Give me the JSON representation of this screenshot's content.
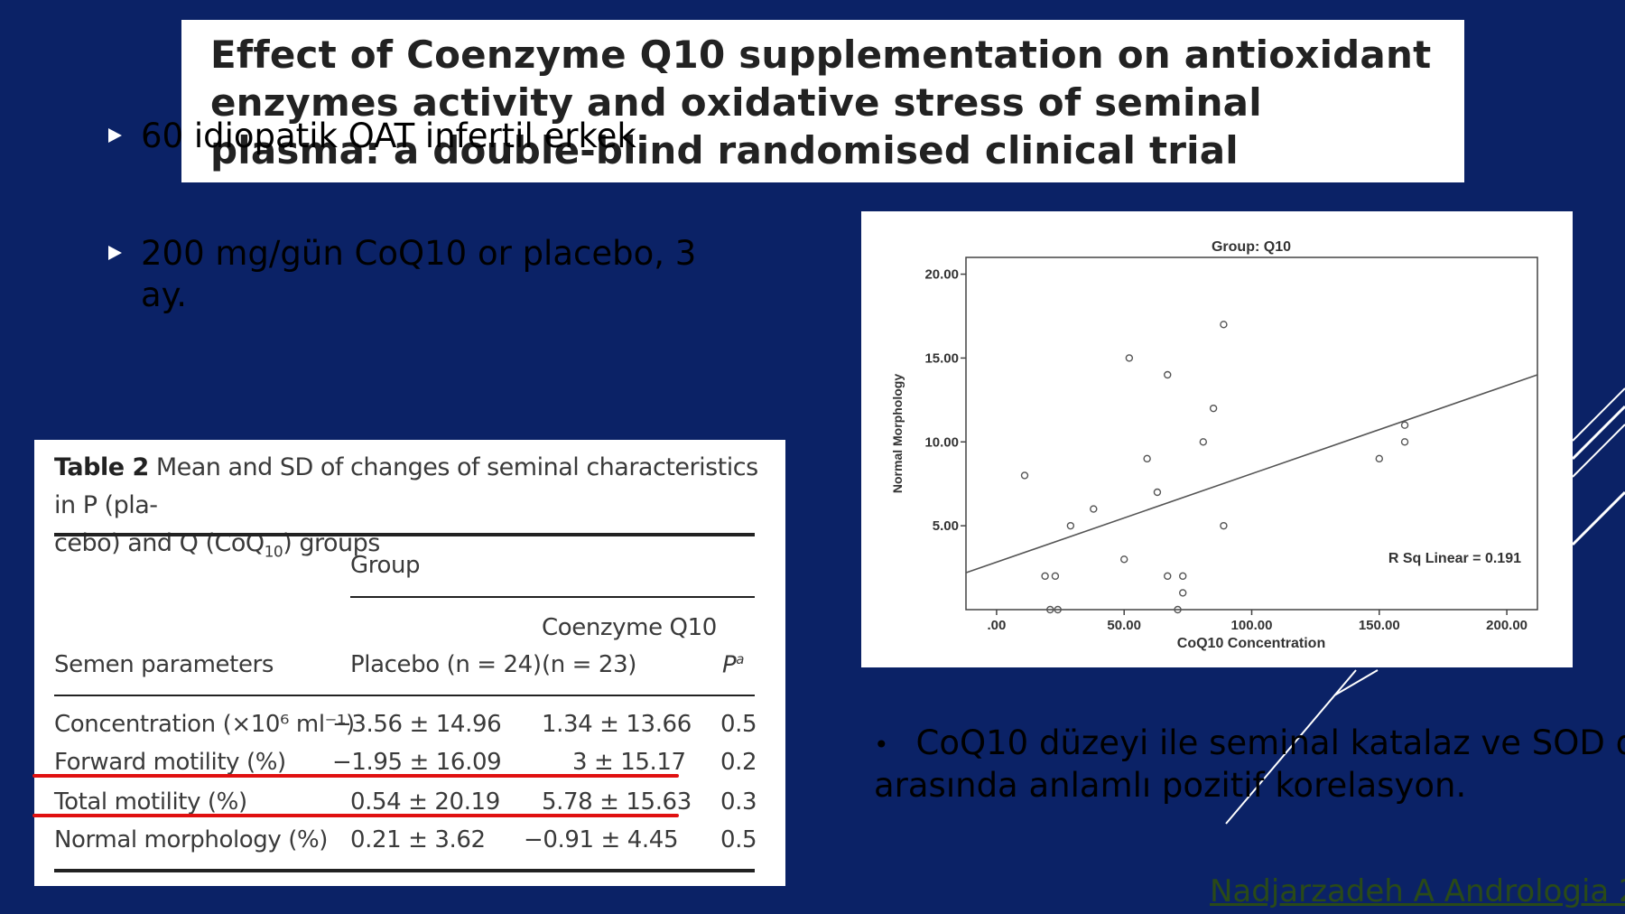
{
  "slide": {
    "title": "Effect of Coenzyme Q10 supplementation on antioxidant enzymes activity and oxidative stress of seminal plasma: a double-blind randomised clinical trial",
    "bullets": [
      "60 idiopatik OAT infertil erkek",
      "200 mg/gün CoQ10 or placebo, 3 ay."
    ],
    "right_text_line1": "CoQ10 düzeyi ile seminal katalaz ve SOD dü",
    "right_text_line2": "arasında anlamlı pozitif korelasyon.",
    "right_bullet_glyph": "•",
    "citation": "Nadjarzadeh A Andrologia 2",
    "colors": {
      "background": "#0b2266",
      "red_underline": "#e01010",
      "white": "#ffffff"
    }
  },
  "table": {
    "caption_label": "Table 2",
    "caption_text_1": " Mean and SD of changes of seminal characteristics in P (pla-",
    "caption_text_2": "cebo) and Q (CoQ",
    "caption_sub": "10",
    "caption_text_3": ") groups",
    "group_header": "Group",
    "col_param": "Semen parameters",
    "col_placebo": "Placebo (n = 24)",
    "col_coq_line1": "Coenzyme Q10",
    "col_coq_line2": "(n = 23)",
    "col_p": "P",
    "col_p_sup": "a",
    "rows": [
      {
        "param": "Concentration (×10⁶ ml⁻¹)",
        "placebo": "−3.56 ± 14.96",
        "coq": "1.34 ± 13.66",
        "p": "0.5"
      },
      {
        "param": "Forward motility (%)",
        "placebo": "−1.95 ± 16.09",
        "coq": "3 ± 15.17",
        "p": "0.2"
      },
      {
        "param": "Total motility (%)",
        "placebo": "0.54 ± 20.19",
        "coq": "5.78 ± 15.63",
        "p": "0.3"
      },
      {
        "param": "Normal morphology (%)",
        "placebo": "0.21 ± 3.62",
        "coq": "−0.91 ± 4.45",
        "p": "0.5"
      }
    ]
  },
  "chart_data": {
    "type": "scatter",
    "title": "Group: Q10",
    "xlabel": "CoQ10 Concentration",
    "ylabel": "Normal Morphology",
    "xlim": [
      -12,
      212
    ],
    "ylim": [
      0,
      21
    ],
    "xticks": [
      0,
      50,
      100,
      150,
      200
    ],
    "xtick_labels": [
      ".00",
      "50.00",
      "100.00",
      "150.00",
      "200.00"
    ],
    "yticks": [
      5,
      10,
      15,
      20
    ],
    "ytick_labels": [
      "5.00",
      "10.00",
      "15.00",
      "20.00"
    ],
    "annotation": "R Sq Linear = 0.191",
    "fit_line": {
      "x": [
        -12,
        212
      ],
      "y": [
        2.2,
        14.0
      ]
    },
    "points": [
      {
        "x": 11,
        "y": 8
      },
      {
        "x": 19,
        "y": 2
      },
      {
        "x": 23,
        "y": 2
      },
      {
        "x": 21,
        "y": 0
      },
      {
        "x": 24,
        "y": 0
      },
      {
        "x": 29,
        "y": 5
      },
      {
        "x": 38,
        "y": 6
      },
      {
        "x": 50,
        "y": 3
      },
      {
        "x": 52,
        "y": 15
      },
      {
        "x": 59,
        "y": 9
      },
      {
        "x": 63,
        "y": 7
      },
      {
        "x": 67,
        "y": 14
      },
      {
        "x": 67,
        "y": 2
      },
      {
        "x": 71,
        "y": 0
      },
      {
        "x": 73,
        "y": 2
      },
      {
        "x": 73,
        "y": 1
      },
      {
        "x": 81,
        "y": 10
      },
      {
        "x": 85,
        "y": 12
      },
      {
        "x": 89,
        "y": 17
      },
      {
        "x": 89,
        "y": 5
      },
      {
        "x": 150,
        "y": 9
      },
      {
        "x": 160,
        "y": 11
      },
      {
        "x": 160,
        "y": 10
      }
    ]
  }
}
